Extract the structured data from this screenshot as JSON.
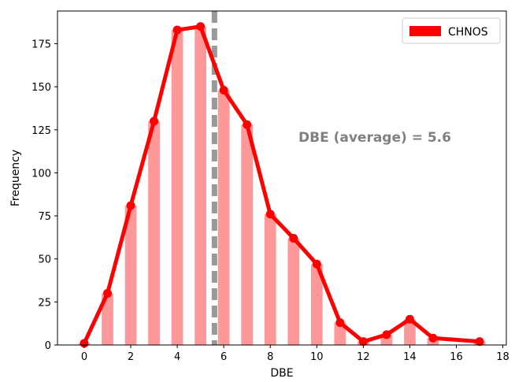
{
  "chart_data": {
    "type": "bar",
    "xlabel": "DBE",
    "ylabel": "Frequency",
    "xlim": [
      -1.15,
      18.15
    ],
    "ylim": [
      0,
      194
    ],
    "xticks": [
      0,
      2,
      4,
      6,
      8,
      10,
      12,
      14,
      16,
      18
    ],
    "yticks": [
      0,
      25,
      50,
      75,
      100,
      125,
      150,
      175
    ],
    "grid": false,
    "legend": {
      "position": "top-right",
      "entries": [
        "CHNOS"
      ]
    },
    "series": [
      {
        "name": "CHNOS",
        "x": [
          0,
          1,
          2,
          3,
          4,
          5,
          6,
          7,
          8,
          9,
          10,
          11,
          12,
          13,
          14,
          15,
          17
        ],
        "values": [
          1,
          30,
          81,
          130,
          183,
          185,
          148,
          128,
          76,
          62,
          47,
          13,
          2,
          6,
          15,
          4,
          2
        ],
        "bar_color": "#ff9999",
        "line_color": "#ff0000"
      }
    ],
    "average_line": {
      "x": 5.6,
      "color": "#999999"
    },
    "annotation": "DBE (average) = 5.6"
  }
}
